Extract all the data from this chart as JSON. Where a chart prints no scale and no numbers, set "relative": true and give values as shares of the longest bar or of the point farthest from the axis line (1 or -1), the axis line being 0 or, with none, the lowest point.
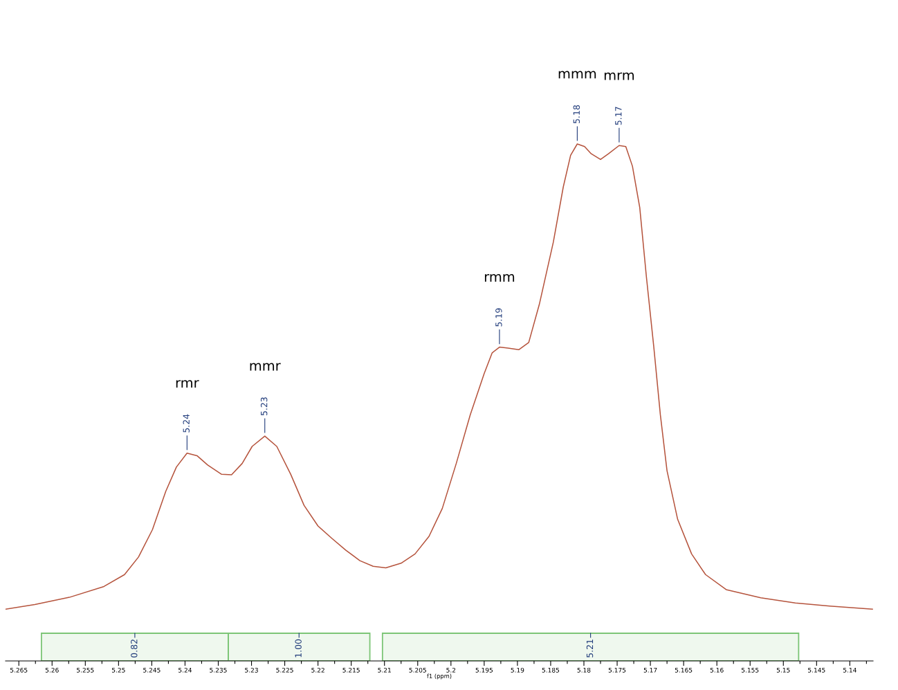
{
  "chart_data": {
    "type": "line",
    "relative": true,
    "xlabel": "f1 (ppm)",
    "color": "#b5533c",
    "grid": false,
    "legend": false,
    "marker": "none",
    "line_style": "solid",
    "xlim": [
      5.267,
      5.1365
    ],
    "xticks": [
      5.265,
      {
        "value": 5.2625,
        "label": null
      },
      5.26,
      {
        "value": 5.2575,
        "label": null
      },
      5.255,
      {
        "value": 5.2525,
        "label": null
      },
      5.25,
      {
        "value": 5.2475,
        "label": null
      },
      5.245,
      {
        "value": 5.2425,
        "label": null
      },
      5.24,
      {
        "value": 5.2375,
        "label": null
      },
      5.235,
      {
        "value": 5.2325,
        "label": null
      },
      5.23,
      {
        "value": 5.2275,
        "label": null
      },
      5.225,
      {
        "value": 5.2225,
        "label": null
      },
      5.22,
      {
        "value": 5.2175,
        "label": null
      },
      5.215,
      {
        "value": 5.2125,
        "label": null
      },
      5.21,
      {
        "value": 5.2075,
        "label": null
      },
      5.205,
      {
        "value": 5.2025,
        "label": null
      },
      5.2,
      {
        "value": 5.1975,
        "label": null
      },
      5.195,
      {
        "value": 5.1925,
        "label": null
      },
      5.19,
      {
        "value": 5.1875,
        "label": null
      },
      5.185,
      {
        "value": 5.1825,
        "label": null
      },
      5.18,
      {
        "value": 5.1775,
        "label": null
      },
      5.175,
      {
        "value": 5.1725,
        "label": null
      },
      5.17,
      {
        "value": 5.1675,
        "label": null
      },
      5.165,
      {
        "value": 5.1625,
        "label": null
      },
      5.16,
      {
        "value": 5.1575,
        "label": null
      },
      5.155,
      {
        "value": 5.1525,
        "label": null
      },
      5.15,
      {
        "value": 5.1475,
        "label": null
      },
      5.145,
      {
        "value": 5.1425,
        "label": null
      },
      5.14,
      {
        "value": 5.1375,
        "label": null
      }
    ],
    "x": [
      5.267,
      5.2626,
      5.2574,
      5.2522,
      5.2491,
      5.247,
      5.2449,
      5.2429,
      5.2413,
      5.2397,
      5.2382,
      5.2366,
      5.2345,
      5.233,
      5.2314,
      5.2299,
      5.228,
      5.2262,
      5.2241,
      5.2221,
      5.22,
      5.2179,
      5.2158,
      5.2137,
      5.2117,
      5.2098,
      5.2075,
      5.2054,
      5.2033,
      5.2013,
      5.1992,
      5.1971,
      5.195,
      5.1938,
      5.1927,
      5.1914,
      5.1898,
      5.1883,
      5.1867,
      5.1846,
      5.1831,
      5.182,
      5.181,
      5.1799,
      5.1789,
      5.1775,
      5.1763,
      5.1747,
      5.1737,
      5.1727,
      5.1716,
      5.1706,
      5.1695,
      5.1685,
      5.1675,
      5.1659,
      5.1638,
      5.1617,
      5.1586,
      5.1534,
      5.1482,
      5.143,
      5.1366
    ],
    "values": [
      0.1,
      0.109,
      0.123,
      0.144,
      0.167,
      0.201,
      0.254,
      0.328,
      0.375,
      0.402,
      0.397,
      0.379,
      0.361,
      0.36,
      0.382,
      0.415,
      0.435,
      0.415,
      0.361,
      0.301,
      0.261,
      0.237,
      0.214,
      0.194,
      0.183,
      0.18,
      0.189,
      0.207,
      0.241,
      0.295,
      0.382,
      0.476,
      0.556,
      0.596,
      0.607,
      0.605,
      0.602,
      0.616,
      0.69,
      0.81,
      0.917,
      0.978,
      1,
      0.995,
      0.981,
      0.97,
      0.981,
      0.997,
      0.995,
      0.957,
      0.877,
      0.743,
      0.609,
      0.476,
      0.368,
      0.274,
      0.207,
      0.167,
      0.138,
      0.122,
      0.112,
      0.106,
      0.1
    ],
    "annotations": [
      {
        "text": "5.24",
        "x": 5.2397,
        "y": 0.402
      },
      {
        "text": "5.23",
        "x": 5.228,
        "y": 0.435
      },
      {
        "text": "5.19",
        "x": 5.1927,
        "y": 0.607
      },
      {
        "text": "5.18",
        "x": 5.181,
        "y": 1
      },
      {
        "text": "5.17",
        "x": 5.1747,
        "y": 0.997
      },
      "rmr",
      "mmr",
      "rmm",
      "mmm",
      "mrm"
    ],
    "bands": [
      {
        "axis": "x",
        "from": 5.2616,
        "to": 5.2335,
        "label": "0.82",
        "color": "#7cc576"
      },
      {
        "axis": "x",
        "from": 5.2335,
        "to": 5.2122,
        "label": "1.00",
        "color": "#7cc576"
      },
      {
        "axis": "x",
        "from": 5.2103,
        "to": 5.1477,
        "label": "5.21",
        "color": "#7cc576"
      }
    ]
  }
}
